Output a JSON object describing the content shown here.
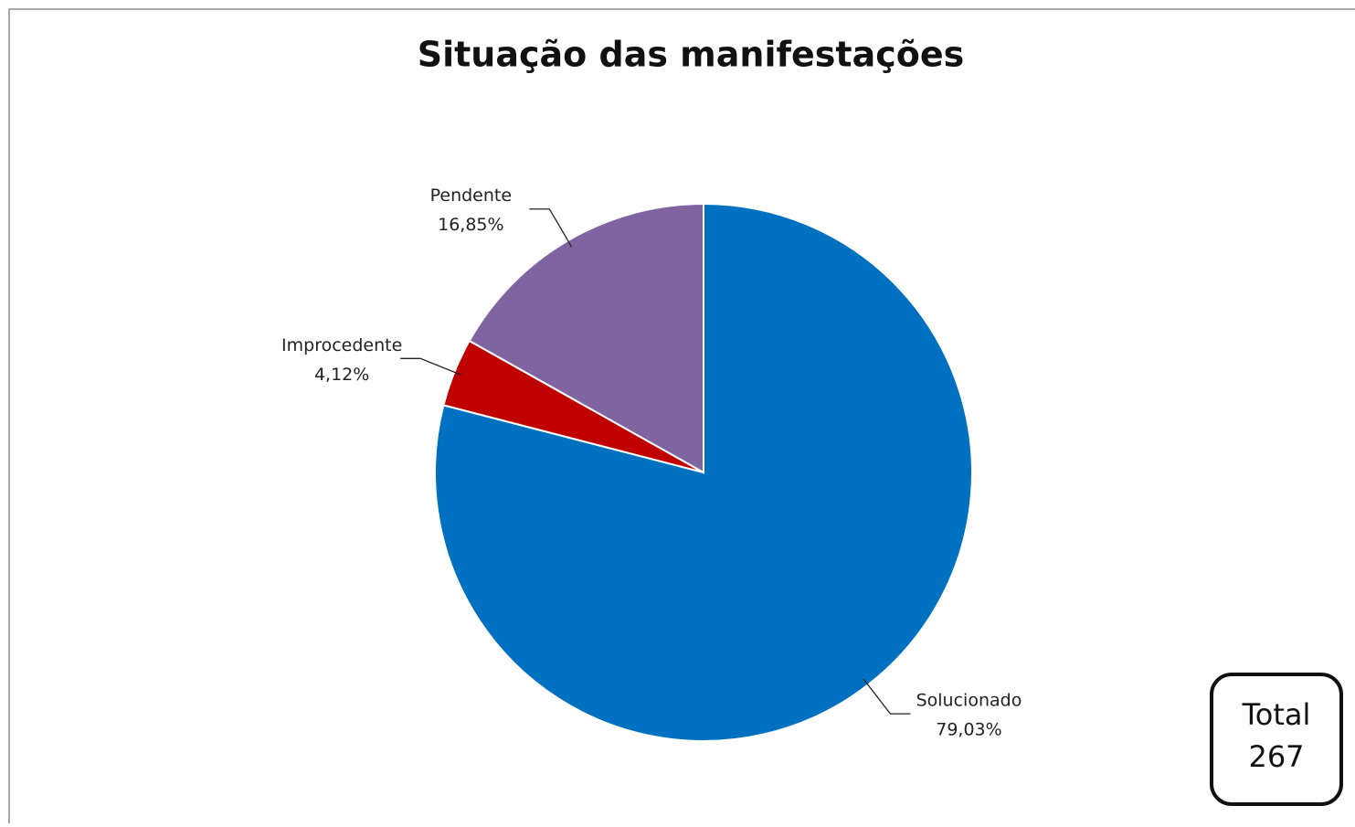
{
  "chart_data": {
    "type": "pie",
    "title": "Situação das manifestações",
    "categories": [
      "Solucionado",
      "Improcedente",
      "Pendente"
    ],
    "values": [
      79.03,
      4.12,
      16.85
    ],
    "value_labels": [
      "79,03%",
      "4,12%",
      "16,85%"
    ],
    "colors": [
      "#0070c0",
      "#c00000",
      "#8064a2"
    ],
    "total_label": "Total",
    "total": 267
  }
}
